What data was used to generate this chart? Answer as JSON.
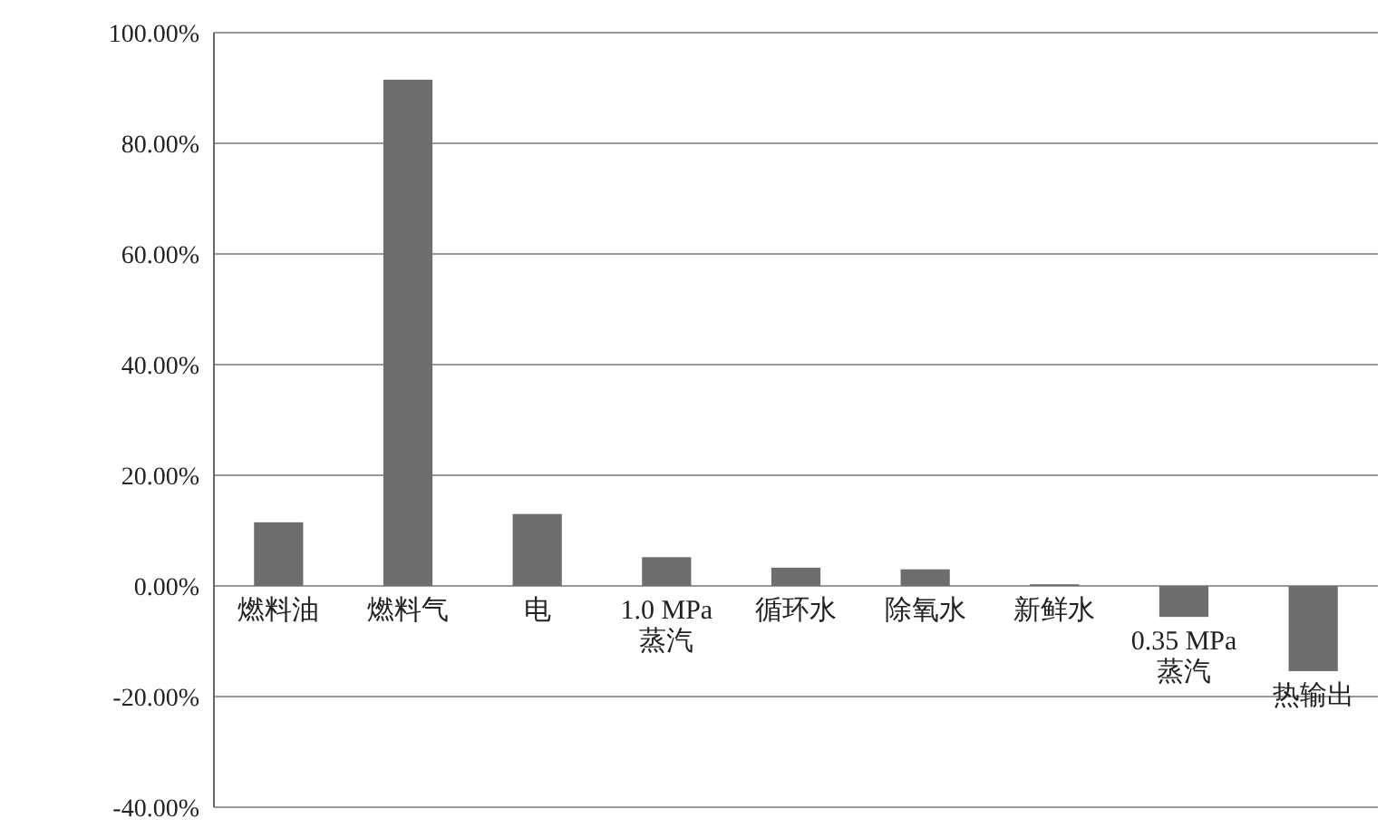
{
  "chart_data": {
    "type": "bar",
    "categories": [
      "燃料油",
      "燃料气",
      "电",
      "1.0 MPa 蒸汽",
      "循环水",
      "除氧水",
      "新鲜水",
      "0.35 MPa 蒸汽",
      "热输出"
    ],
    "values": [
      11.5,
      91.5,
      13,
      5.2,
      3.3,
      3,
      0.3,
      -5.6,
      -15.4
    ],
    "color": "#6e6e6e",
    "ylim": [
      -40,
      100
    ],
    "yticks": [
      {
        "value": -40,
        "label": "-40.00%"
      },
      {
        "value": -20,
        "label": "-20.00%"
      },
      {
        "value": 0,
        "label": "0.00%"
      },
      {
        "value": 20,
        "label": "20.00%"
      },
      {
        "value": 40,
        "label": "40.00%"
      },
      {
        "value": 60,
        "label": "60.00%"
      },
      {
        "value": 80,
        "label": "80.00%"
      },
      {
        "value": 100,
        "label": "100.00%"
      }
    ],
    "grid": "y"
  }
}
